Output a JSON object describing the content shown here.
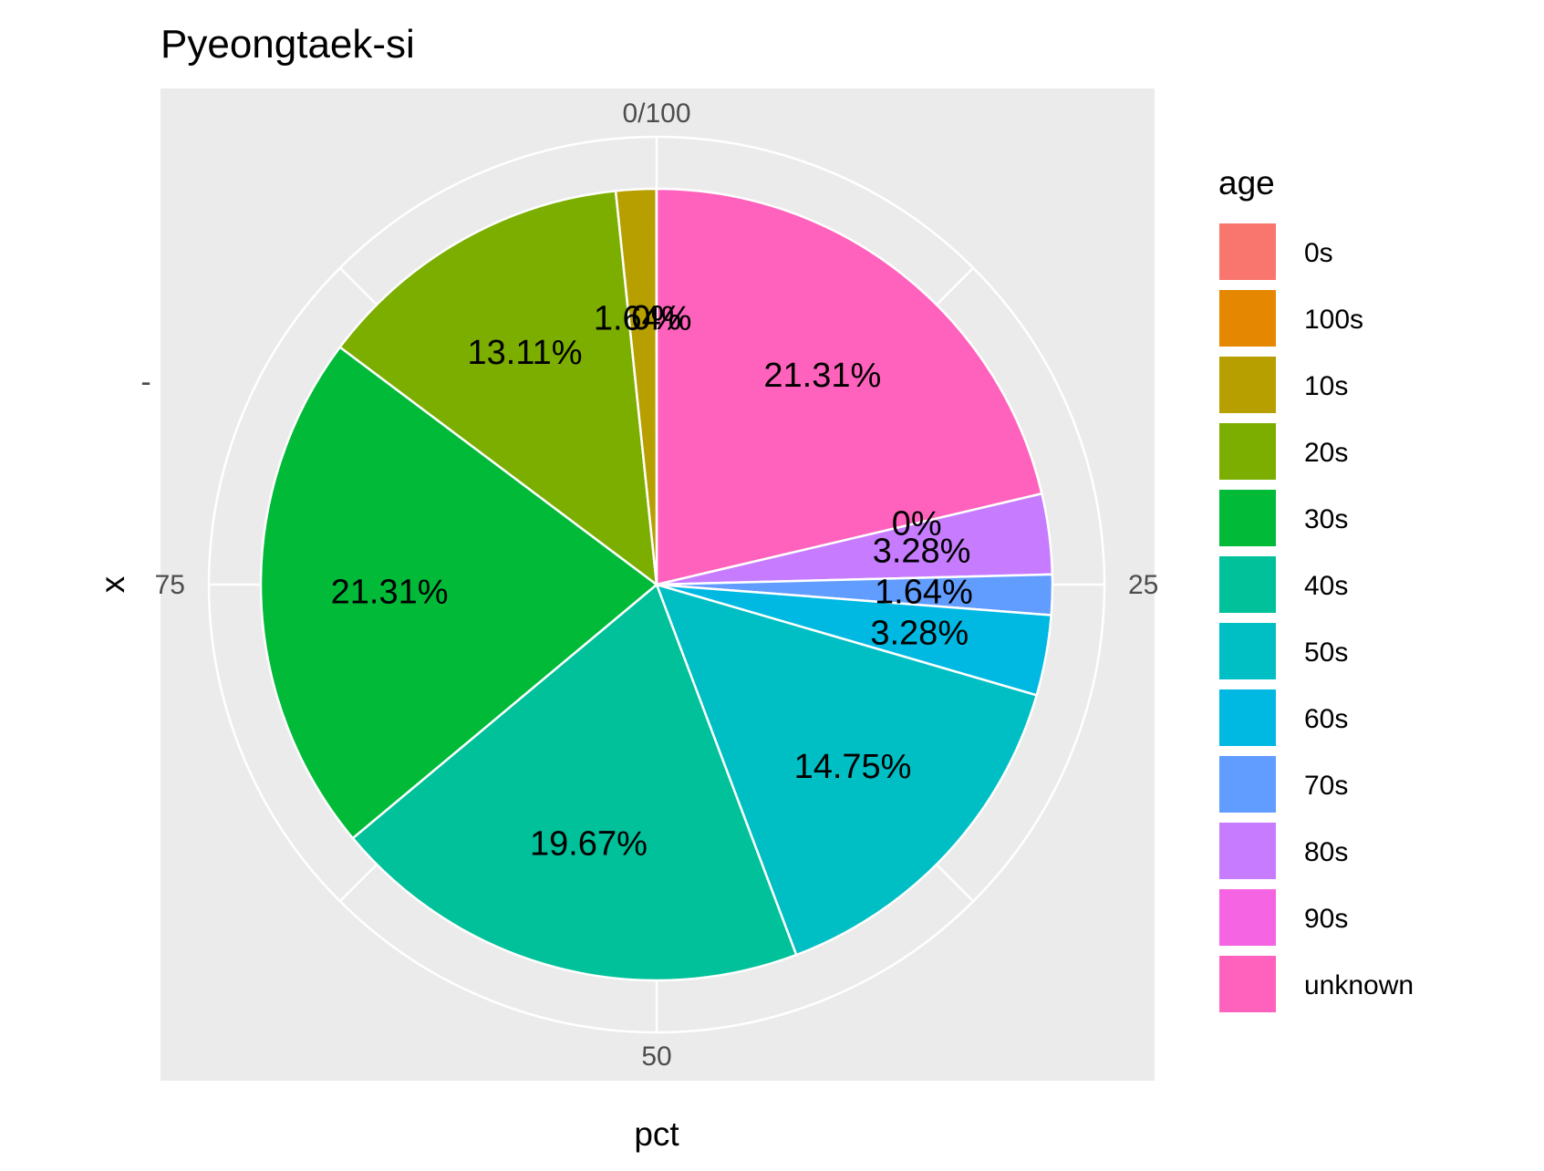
{
  "chart_data": {
    "type": "pie",
    "title": "Pyeongtaek-si",
    "xlabel": "pct",
    "ylabel": "x",
    "y_tick_labels": [
      "-"
    ],
    "angle_ticks": [
      {
        "value": 0,
        "label": "0/100"
      },
      {
        "value": 25,
        "label": "25"
      },
      {
        "value": 50,
        "label": "50"
      },
      {
        "value": 75,
        "label": "75"
      }
    ],
    "legend": {
      "title": "age",
      "position": "right",
      "entries": [
        "0s",
        "100s",
        "10s",
        "20s",
        "30s",
        "40s",
        "50s",
        "60s",
        "70s",
        "80s",
        "90s",
        "unknown"
      ]
    },
    "slices_clockwise_from_top": [
      {
        "category": "unknown",
        "value": 21.31,
        "label": "21.31%",
        "color": "#FF62BC"
      },
      {
        "category": "90s",
        "value": 0,
        "label": "0%",
        "color": "#F564E3"
      },
      {
        "category": "80s",
        "value": 3.28,
        "label": "3.28%",
        "color": "#C77CFF"
      },
      {
        "category": "70s",
        "value": 1.64,
        "label": "1.64%",
        "color": "#619CFF"
      },
      {
        "category": "60s",
        "value": 3.28,
        "label": "3.28%",
        "color": "#00B9E3"
      },
      {
        "category": "50s",
        "value": 14.75,
        "label": "14.75%",
        "color": "#00BFC4"
      },
      {
        "category": "40s",
        "value": 19.67,
        "label": "19.67%",
        "color": "#00C19A"
      },
      {
        "category": "30s",
        "value": 21.31,
        "label": "21.31%",
        "color": "#00BA38"
      },
      {
        "category": "20s",
        "value": 13.11,
        "label": "13.11%",
        "color": "#7CAE00"
      },
      {
        "category": "10s",
        "value": 1.64,
        "label": "1.64%",
        "color": "#B79F00"
      },
      {
        "category": "100s",
        "value": 0,
        "label": "0%",
        "color": "#E58700"
      },
      {
        "category": "0s",
        "value": 0,
        "label": "0%",
        "color": "#F8766D"
      }
    ],
    "legend_colors": {
      "0s": "#F8766D",
      "100s": "#E58700",
      "10s": "#B79F00",
      "20s": "#7CAE00",
      "30s": "#00BA38",
      "40s": "#00C19A",
      "50s": "#00BFC4",
      "60s": "#00B9E3",
      "70s": "#619CFF",
      "80s": "#C77CFF",
      "90s": "#F564E3",
      "unknown": "#FF62BC"
    },
    "panel_background": "#EBEBEB",
    "grid": true
  }
}
